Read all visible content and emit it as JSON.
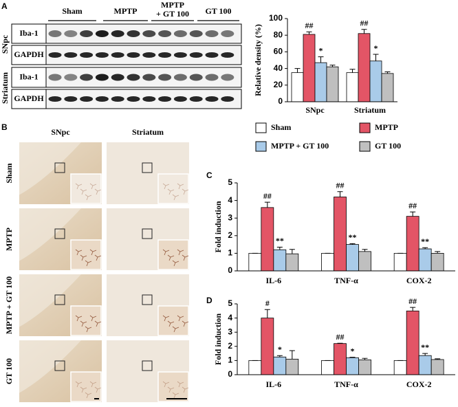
{
  "panels": [
    "A",
    "B",
    "C",
    "D"
  ],
  "blot": {
    "groups": [
      [
        "Sham"
      ],
      [
        "MPTP"
      ],
      [
        "MPTP",
        "+ GT 100"
      ],
      [
        "GT 100"
      ]
    ],
    "rows": [
      "Iba-1",
      "GAPDH",
      "Iba-1",
      "GAPDH"
    ],
    "regions": [
      "SNpc",
      "Striatum"
    ]
  },
  "micrographs": {
    "columns": [
      "SNpc",
      "Striatum"
    ],
    "rows": [
      "Sham",
      "MPTP",
      "MPTP + GT 100",
      "GT 100"
    ]
  },
  "chart_data": [
    {
      "type": "bar",
      "ylabel": "Relative density (%)",
      "categories": [
        "SNpc",
        "Striatum"
      ],
      "ylim": [
        0,
        100
      ],
      "yticks": [
        0,
        20,
        40,
        60,
        80,
        100
      ],
      "series": [
        {
          "name": "Sham",
          "color": "#ffffff",
          "values": [
            35,
            35
          ],
          "errors": [
            5,
            4
          ]
        },
        {
          "name": "MPTP",
          "color": "#e35566",
          "values": [
            81,
            82
          ],
          "errors": [
            3,
            5
          ],
          "labels": [
            "##",
            "##"
          ]
        },
        {
          "name": "MPTP + GT 100",
          "color": "#a9cbe9",
          "values": [
            47,
            49
          ],
          "errors": [
            7,
            8
          ],
          "labels": [
            "*",
            "*"
          ]
        },
        {
          "name": "GT 100",
          "color": "#bfbfbf",
          "values": [
            42,
            34
          ],
          "errors": [
            2,
            2
          ]
        }
      ]
    },
    {
      "type": "bar",
      "ylabel": "Fold induction",
      "categories": [
        "IL-6",
        "TNF-α",
        "COX-2"
      ],
      "ylim": [
        0,
        5
      ],
      "yticks": [
        0,
        1,
        2,
        3,
        4,
        5
      ],
      "series": [
        {
          "color": "#ffffff",
          "values": [
            1,
            1,
            1
          ],
          "errors": [
            0,
            0,
            0
          ]
        },
        {
          "color": "#e35566",
          "values": [
            3.6,
            4.2,
            3.1
          ],
          "errors": [
            0.3,
            0.3,
            0.25
          ],
          "labels": [
            "##",
            "##",
            "##"
          ]
        },
        {
          "color": "#a9cbe9",
          "values": [
            1.2,
            1.5,
            1.25
          ],
          "errors": [
            0.15,
            0.05,
            0.07
          ],
          "labels": [
            "**",
            "**",
            "**"
          ]
        },
        {
          "color": "#bfbfbf",
          "values": [
            0.97,
            1.1,
            1.0
          ],
          "errors": [
            0.25,
            0.12,
            0.1
          ]
        }
      ]
    },
    {
      "type": "bar",
      "ylabel": "Fold induction",
      "categories": [
        "IL-6",
        "TNF-α",
        "COX-2"
      ],
      "ylim": [
        0,
        5
      ],
      "yticks": [
        0,
        1,
        2,
        3,
        4,
        5
      ],
      "series": [
        {
          "color": "#ffffff",
          "values": [
            1,
            1,
            1
          ],
          "errors": [
            0,
            0,
            0
          ]
        },
        {
          "color": "#e35566",
          "values": [
            4.0,
            2.2,
            4.5
          ],
          "errors": [
            0.6,
            0.02,
            0.25
          ],
          "labels": [
            "#",
            "##",
            "##"
          ]
        },
        {
          "color": "#a9cbe9",
          "values": [
            1.25,
            1.2,
            1.35
          ],
          "errors": [
            0.1,
            0.03,
            0.15
          ],
          "labels": [
            "*",
            "*",
            "**"
          ]
        },
        {
          "color": "#bfbfbf",
          "values": [
            1.1,
            1.05,
            1.07
          ],
          "errors": [
            0.6,
            0.1,
            0.05
          ]
        }
      ]
    }
  ]
}
